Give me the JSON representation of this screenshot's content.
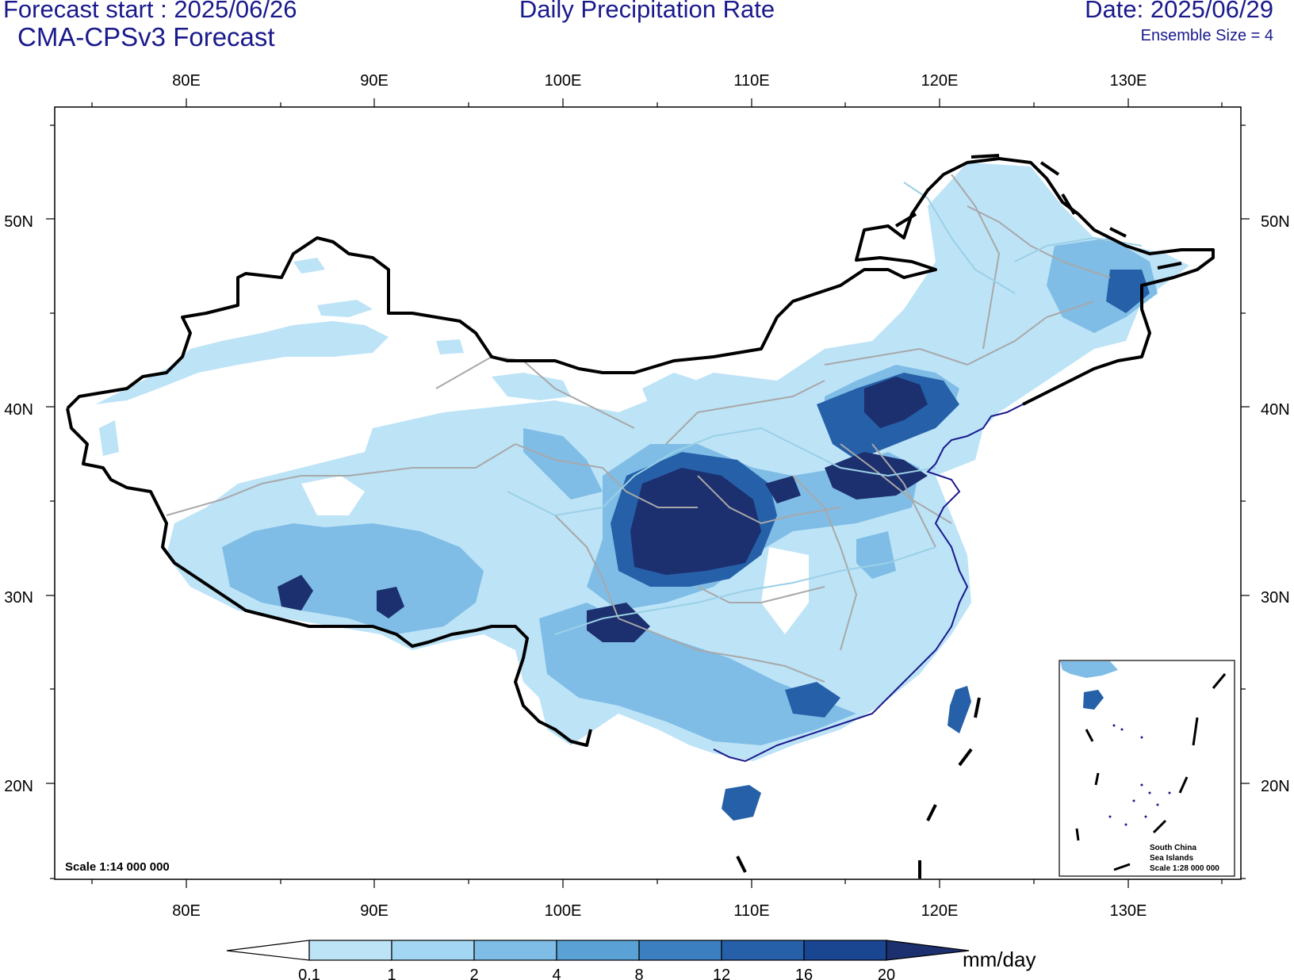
{
  "header": {
    "forecast_start": "Forecast start : 2025/06/26",
    "model": "CMA-CPSv3 Forecast",
    "title": "Daily Precipitation Rate",
    "date": "Date: 2025/06/29",
    "ensemble": "Ensemble Size = 4"
  },
  "axes": {
    "lon_labels": [
      "80E",
      "90E",
      "100E",
      "110E",
      "120E",
      "130E"
    ],
    "lat_labels": [
      "20N",
      "30N",
      "40N",
      "50N"
    ]
  },
  "map": {
    "scale_label": "Scale 1:14 000 000",
    "inset_labels": [
      "South China",
      "Sea Islands",
      "Scale 1:28 000 000"
    ]
  },
  "colorbar": {
    "unit": "mm/day",
    "ticks": [
      "0.1",
      "1",
      "2",
      "4",
      "8",
      "12",
      "16",
      "20"
    ],
    "colors": [
      "#ffffff",
      "#bde3f7",
      "#a3d6f2",
      "#7fbde6",
      "#5aa2d6",
      "#3b7fc0",
      "#2660a8",
      "#1a4590",
      "#1c2f6e"
    ]
  }
}
